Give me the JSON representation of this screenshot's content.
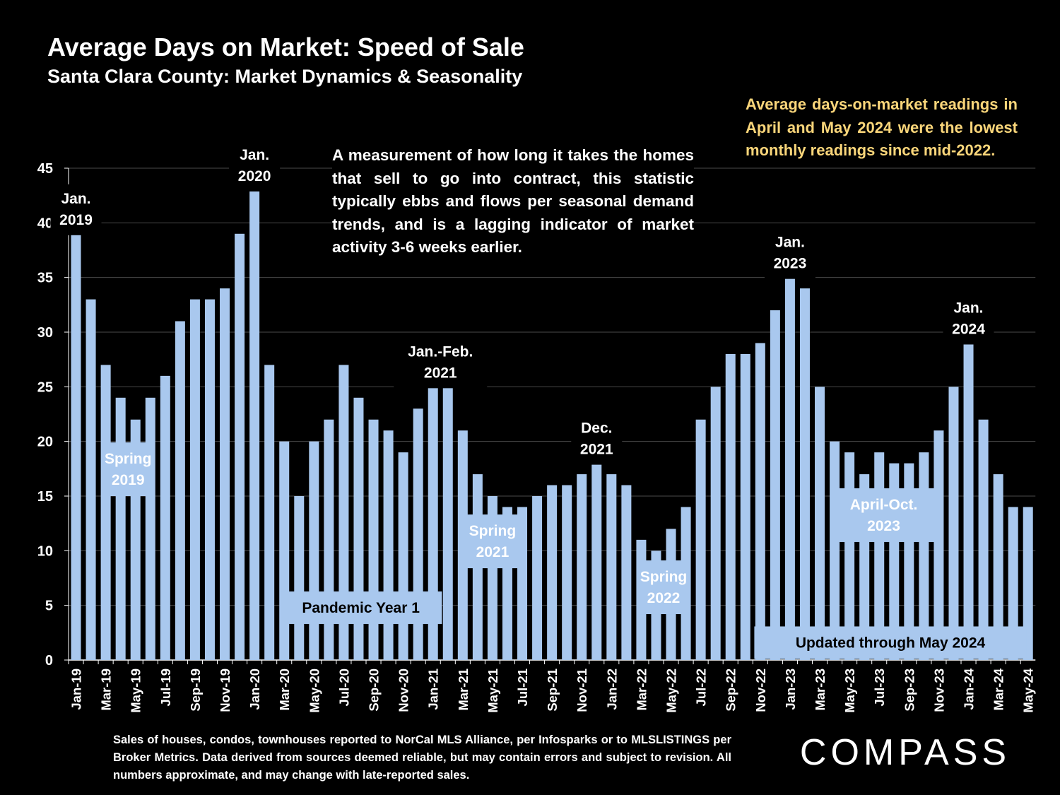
{
  "title": "Average Days on Market: Speed of Sale",
  "subtitle": "Santa Clara County: Market Dynamics & Seasonality",
  "callout_text": "Average days-on-market readings in April and May 2024 were the lowest monthly readings since mid-2022.",
  "definition_text": "A measurement of how long it takes the homes that sell to go into contract, this statistic typically ebbs and flows per seasonal demand trends, and is a lagging indicator of market activity 3-6 weeks earlier.",
  "footnote": "Sales of houses, condos, townhouses reported to NorCal MLS Alliance, per Infosparks or to MLSLISTINGS per Broker Metrics. Data derived from sources deemed reliable, but may contain errors and subject to revision. All numbers approximate, and may change with late-reported sales.",
  "logo_text": "COMPASS",
  "colors": {
    "background": "#000000",
    "bar": "#A9C8EE",
    "label_box": "#A9C8EE",
    "label_box_text": "#FFFFFF",
    "callout_text": "#FAD67A",
    "text": "#FFFFFF",
    "grid": "#4A4A4A"
  },
  "chart_data": {
    "type": "bar",
    "ylim": [
      0,
      45
    ],
    "yticks": [
      0,
      5,
      10,
      15,
      20,
      25,
      30,
      35,
      40,
      45
    ],
    "grid": true,
    "x_tick_labels_every": 2,
    "categories": [
      "Jan-19",
      "Feb-19",
      "Mar-19",
      "Apr-19",
      "May-19",
      "Jun-19",
      "Jul-19",
      "Aug-19",
      "Sep-19",
      "Oct-19",
      "Nov-19",
      "Dec-19",
      "Jan-20",
      "Feb-20",
      "Mar-20",
      "Apr-20",
      "May-20",
      "Jun-20",
      "Jul-20",
      "Aug-20",
      "Sep-20",
      "Oct-20",
      "Nov-20",
      "Dec-20",
      "Jan-21",
      "Feb-21",
      "Mar-21",
      "Apr-21",
      "May-21",
      "Jun-21",
      "Jul-21",
      "Aug-21",
      "Sep-21",
      "Oct-21",
      "Nov-21",
      "Dec-21",
      "Jan-22",
      "Feb-22",
      "Mar-22",
      "Apr-22",
      "May-22",
      "Jun-22",
      "Jul-22",
      "Aug-22",
      "Sep-22",
      "Oct-22",
      "Nov-22",
      "Dec-22",
      "Jan-23",
      "Feb-23",
      "Mar-23",
      "Apr-23",
      "May-23",
      "Jun-23",
      "Jul-23",
      "Aug-23",
      "Sep-23",
      "Oct-23",
      "Nov-23",
      "Dec-23",
      "Jan-24",
      "Feb-24",
      "Mar-24",
      "Apr-24",
      "May-24"
    ],
    "values": [
      39,
      33,
      27,
      24,
      22,
      24,
      26,
      31,
      33,
      33,
      34,
      39,
      43,
      27,
      20,
      15,
      20,
      22,
      27,
      24,
      22,
      21,
      19,
      23,
      25,
      25,
      21,
      17,
      15,
      14,
      14,
      15,
      16,
      16,
      17,
      18,
      17,
      16,
      11,
      10,
      12,
      14,
      22,
      25,
      28,
      28,
      29,
      32,
      35,
      34,
      25,
      20,
      19,
      17,
      19,
      18,
      18,
      19,
      21,
      25,
      29,
      22,
      17,
      14,
      14
    ],
    "annotations": [
      {
        "index": 0,
        "lines": [
          "Jan.",
          "2019"
        ]
      },
      {
        "index": 12,
        "lines": [
          "Jan.",
          "2020"
        ]
      },
      {
        "index": 24.5,
        "lines": [
          "Jan.-Feb.",
          "2021"
        ]
      },
      {
        "index": 35,
        "lines": [
          "Dec.",
          "2021"
        ]
      },
      {
        "index": 48,
        "lines": [
          "Jan.",
          "2023"
        ]
      },
      {
        "index": 60,
        "lines": [
          "Jan.",
          "2024"
        ]
      }
    ],
    "period_labels": [
      {
        "from": 2.5,
        "to": 5.5,
        "y": 15,
        "lines": [
          "Spring",
          "2019"
        ]
      },
      {
        "from": 14.2,
        "to": 25.1,
        "y": 3.3,
        "lines": [
          "Pandemic Year 1"
        ]
      },
      {
        "from": 26.7,
        "to": 30.3,
        "y": 8.4,
        "lines": [
          "Spring",
          "2021"
        ]
      },
      {
        "from": 38.2,
        "to": 41.8,
        "y": 4.2,
        "lines": [
          "Spring",
          "2022"
        ]
      },
      {
        "from": 51.4,
        "to": 58.2,
        "y": 10.8,
        "lines": [
          "April-Oct.",
          "2023"
        ]
      },
      {
        "from": 46.1,
        "to": 64.4,
        "y": 0.1,
        "lines": [
          "Updated through May 2024"
        ]
      }
    ]
  }
}
